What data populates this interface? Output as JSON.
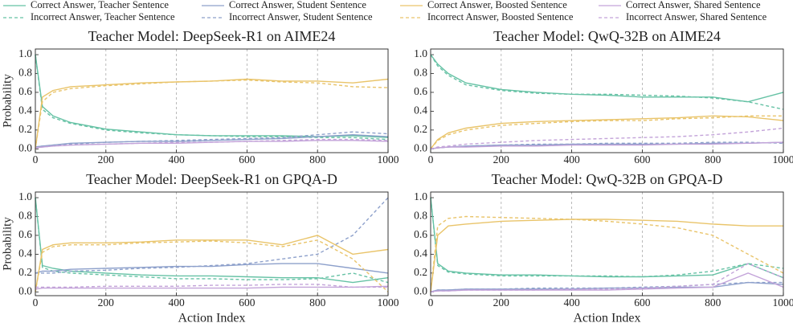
{
  "chart_data": [
    {
      "type": "line",
      "title": "Teacher Model: DeepSeek-R1 on AIME24",
      "ylabel": "Probability",
      "x": [
        0,
        20,
        50,
        100,
        200,
        300,
        400,
        500,
        600,
        700,
        800,
        900,
        1000
      ],
      "xlim": [
        0,
        1000
      ],
      "xticks": [
        0,
        200,
        400,
        600,
        800,
        1000
      ],
      "ylim": [
        -0.04,
        1.06
      ],
      "yticks": [
        {
          "value": 0,
          "label": "0.0"
        },
        0.2,
        0.4,
        0.6,
        0.8,
        {
          "value": 1,
          "label": "1.0"
        }
      ],
      "grid": true,
      "series": [
        {
          "name": "Correct Answer, Teacher Sentence",
          "color": "#66c2a5",
          "dash": false,
          "values": [
            1.0,
            0.45,
            0.35,
            0.28,
            0.21,
            0.18,
            0.15,
            0.14,
            0.14,
            0.14,
            0.13,
            0.14,
            0.12
          ]
        },
        {
          "name": "Incorrect Answer, Teacher Sentence",
          "color": "#66c2a5",
          "dash": true,
          "values": [
            1.0,
            0.42,
            0.33,
            0.27,
            0.2,
            0.17,
            0.15,
            0.14,
            0.13,
            0.13,
            0.12,
            0.12,
            0.1
          ]
        },
        {
          "name": "Correct Answer, Student Sentence",
          "color": "#8da0cb",
          "dash": false,
          "values": [
            0.02,
            0.03,
            0.04,
            0.06,
            0.07,
            0.08,
            0.08,
            0.09,
            0.1,
            0.11,
            0.13,
            0.15,
            0.13
          ]
        },
        {
          "name": "Incorrect Answer, Student Sentence",
          "color": "#8da0cb",
          "dash": true,
          "values": [
            0.02,
            0.03,
            0.04,
            0.05,
            0.07,
            0.08,
            0.09,
            0.1,
            0.11,
            0.12,
            0.15,
            0.18,
            0.16
          ]
        },
        {
          "name": "Correct Answer, Boosted Sentence",
          "color": "#e9c46a",
          "dash": false,
          "values": [
            0.0,
            0.55,
            0.62,
            0.66,
            0.68,
            0.7,
            0.71,
            0.72,
            0.74,
            0.72,
            0.72,
            0.7,
            0.74
          ]
        },
        {
          "name": "Incorrect Answer, Boosted Sentence",
          "color": "#e9c46a",
          "dash": true,
          "values": [
            0.0,
            0.5,
            0.6,
            0.64,
            0.67,
            0.69,
            0.71,
            0.72,
            0.73,
            0.71,
            0.7,
            0.66,
            0.65
          ]
        },
        {
          "name": "Correct Answer, Shared Sentence",
          "color": "#c3a3d9",
          "dash": false,
          "values": [
            0.01,
            0.02,
            0.03,
            0.04,
            0.05,
            0.06,
            0.06,
            0.07,
            0.08,
            0.08,
            0.09,
            0.09,
            0.08
          ]
        },
        {
          "name": "Incorrect Answer, Shared Sentence",
          "color": "#c3a3d9",
          "dash": true,
          "values": [
            0.01,
            0.02,
            0.03,
            0.04,
            0.05,
            0.06,
            0.07,
            0.07,
            0.08,
            0.09,
            0.1,
            0.1,
            0.09
          ]
        }
      ]
    },
    {
      "type": "line",
      "title": "Teacher Model: QwQ-32B on AIME24",
      "x": [
        0,
        20,
        50,
        100,
        200,
        300,
        400,
        500,
        600,
        700,
        800,
        900,
        1000
      ],
      "xlim": [
        0,
        1000
      ],
      "xticks": [
        0,
        200,
        400,
        600,
        800,
        1000
      ],
      "ylim": [
        -0.04,
        1.06
      ],
      "yticks": [
        {
          "value": 0,
          "label": "0.0"
        },
        0.2,
        0.4,
        0.6,
        0.8,
        {
          "value": 1,
          "label": "1.0"
        }
      ],
      "grid": true,
      "series": [
        {
          "name": "Correct Answer, Teacher Sentence",
          "color": "#66c2a5",
          "dash": false,
          "values": [
            1.0,
            0.9,
            0.8,
            0.7,
            0.63,
            0.6,
            0.58,
            0.57,
            0.55,
            0.55,
            0.55,
            0.5,
            0.6
          ]
        },
        {
          "name": "Incorrect Answer, Teacher Sentence",
          "color": "#66c2a5",
          "dash": true,
          "values": [
            1.0,
            0.88,
            0.78,
            0.68,
            0.62,
            0.59,
            0.58,
            0.58,
            0.57,
            0.56,
            0.54,
            0.5,
            0.42
          ]
        },
        {
          "name": "Correct Answer, Student Sentence",
          "color": "#8da0cb",
          "dash": false,
          "values": [
            0.0,
            0.01,
            0.02,
            0.03,
            0.04,
            0.04,
            0.05,
            0.05,
            0.05,
            0.05,
            0.06,
            0.06,
            0.07
          ]
        },
        {
          "name": "Incorrect Answer, Student Sentence",
          "color": "#8da0cb",
          "dash": true,
          "values": [
            0.0,
            0.01,
            0.02,
            0.03,
            0.04,
            0.05,
            0.05,
            0.06,
            0.06,
            0.06,
            0.07,
            0.07,
            0.06
          ]
        },
        {
          "name": "Correct Answer, Boosted Sentence",
          "color": "#e9c46a",
          "dash": false,
          "values": [
            0.0,
            0.1,
            0.17,
            0.22,
            0.27,
            0.29,
            0.3,
            0.31,
            0.32,
            0.33,
            0.35,
            0.34,
            0.3
          ]
        },
        {
          "name": "Incorrect Answer, Boosted Sentence",
          "color": "#e9c46a",
          "dash": true,
          "values": [
            0.0,
            0.09,
            0.15,
            0.2,
            0.25,
            0.27,
            0.29,
            0.3,
            0.3,
            0.32,
            0.33,
            0.35,
            0.35
          ]
        },
        {
          "name": "Correct Answer, Shared Sentence",
          "color": "#c3a3d9",
          "dash": false,
          "values": [
            0.0,
            0.01,
            0.02,
            0.02,
            0.03,
            0.03,
            0.04,
            0.04,
            0.04,
            0.05,
            0.05,
            0.06,
            0.07
          ]
        },
        {
          "name": "Incorrect Answer, Shared Sentence",
          "color": "#c3a3d9",
          "dash": true,
          "values": [
            0.0,
            0.02,
            0.03,
            0.05,
            0.07,
            0.09,
            0.1,
            0.11,
            0.12,
            0.13,
            0.15,
            0.18,
            0.22
          ]
        }
      ]
    },
    {
      "type": "line",
      "title": "Teacher Model: DeepSeek-R1 on GPQA-D",
      "ylabel": "Probability",
      "xlabel": "Action Index",
      "x": [
        0,
        20,
        50,
        100,
        200,
        300,
        400,
        500,
        600,
        700,
        800,
        900,
        1000
      ],
      "xlim": [
        0,
        1000
      ],
      "xticks": [
        0,
        200,
        400,
        600,
        800,
        1000
      ],
      "ylim": [
        -0.04,
        1.06
      ],
      "yticks": [
        {
          "value": 0,
          "label": "0.0"
        },
        0.2,
        0.4,
        0.6,
        0.8,
        {
          "value": 1,
          "label": "1.0"
        }
      ],
      "grid": true,
      "series": [
        {
          "name": "Correct Answer, Teacher Sentence",
          "color": "#66c2a5",
          "dash": false,
          "values": [
            1.0,
            0.28,
            0.25,
            0.22,
            0.2,
            0.18,
            0.17,
            0.17,
            0.16,
            0.15,
            0.15,
            0.1,
            0.15
          ]
        },
        {
          "name": "Incorrect Answer, Teacher Sentence",
          "color": "#66c2a5",
          "dash": true,
          "values": [
            1.0,
            0.26,
            0.22,
            0.2,
            0.18,
            0.16,
            0.14,
            0.14,
            0.13,
            0.13,
            0.14,
            0.2,
            0.1
          ]
        },
        {
          "name": "Correct Answer, Student Sentence",
          "color": "#8da0cb",
          "dash": false,
          "values": [
            0.2,
            0.22,
            0.22,
            0.24,
            0.25,
            0.26,
            0.27,
            0.27,
            0.29,
            0.3,
            0.3,
            0.25,
            0.2
          ]
        },
        {
          "name": "Incorrect Answer, Student Sentence",
          "color": "#8da0cb",
          "dash": true,
          "values": [
            0.2,
            0.2,
            0.2,
            0.22,
            0.23,
            0.25,
            0.26,
            0.28,
            0.3,
            0.35,
            0.4,
            0.6,
            1.0
          ]
        },
        {
          "name": "Correct Answer, Boosted Sentence",
          "color": "#e9c46a",
          "dash": false,
          "values": [
            0.0,
            0.45,
            0.5,
            0.52,
            0.52,
            0.53,
            0.55,
            0.55,
            0.55,
            0.5,
            0.6,
            0.4,
            0.45
          ]
        },
        {
          "name": "Incorrect Answer, Boosted Sentence",
          "color": "#e9c46a",
          "dash": true,
          "values": [
            0.0,
            0.42,
            0.48,
            0.5,
            0.5,
            0.52,
            0.53,
            0.54,
            0.52,
            0.48,
            0.55,
            0.35,
            0.0
          ]
        },
        {
          "name": "Correct Answer, Shared Sentence",
          "color": "#c3a3d9",
          "dash": false,
          "values": [
            0.03,
            0.04,
            0.04,
            0.04,
            0.04,
            0.04,
            0.04,
            0.04,
            0.04,
            0.05,
            0.05,
            0.05,
            0.06
          ]
        },
        {
          "name": "Incorrect Answer, Shared Sentence",
          "color": "#c3a3d9",
          "dash": true,
          "values": [
            0.05,
            0.05,
            0.05,
            0.05,
            0.06,
            0.06,
            0.06,
            0.07,
            0.07,
            0.08,
            0.08,
            0.05,
            0.05
          ]
        }
      ]
    },
    {
      "type": "line",
      "title": "Teacher Model: QwQ-32B on GPQA-D",
      "xlabel": "Action Index",
      "x": [
        0,
        20,
        50,
        100,
        200,
        300,
        400,
        500,
        600,
        700,
        800,
        900,
        1000
      ],
      "xlim": [
        0,
        1000
      ],
      "xticks": [
        0,
        200,
        400,
        600,
        800,
        1000
      ],
      "ylim": [
        -0.04,
        1.06
      ],
      "yticks": [
        {
          "value": 0,
          "label": "0.0"
        },
        0.2,
        0.4,
        0.6,
        0.8,
        {
          "value": 1,
          "label": "1.0"
        }
      ],
      "grid": true,
      "series": [
        {
          "name": "Correct Answer, Teacher Sentence",
          "color": "#66c2a5",
          "dash": false,
          "values": [
            1.0,
            0.3,
            0.22,
            0.2,
            0.18,
            0.18,
            0.17,
            0.16,
            0.16,
            0.17,
            0.18,
            0.3,
            0.15
          ]
        },
        {
          "name": "Incorrect Answer, Teacher Sentence",
          "color": "#66c2a5",
          "dash": true,
          "values": [
            1.0,
            0.28,
            0.21,
            0.19,
            0.17,
            0.17,
            0.17,
            0.17,
            0.16,
            0.18,
            0.22,
            0.3,
            0.25
          ]
        },
        {
          "name": "Correct Answer, Student Sentence",
          "color": "#8da0cb",
          "dash": false,
          "values": [
            0.0,
            0.02,
            0.02,
            0.03,
            0.03,
            0.03,
            0.03,
            0.04,
            0.04,
            0.05,
            0.05,
            0.1,
            0.08
          ]
        },
        {
          "name": "Incorrect Answer, Student Sentence",
          "color": "#8da0cb",
          "dash": true,
          "values": [
            0.0,
            0.02,
            0.02,
            0.03,
            0.03,
            0.04,
            0.04,
            0.04,
            0.05,
            0.06,
            0.08,
            0.1,
            0.1
          ]
        },
        {
          "name": "Correct Answer, Boosted Sentence",
          "color": "#e9c46a",
          "dash": false,
          "values": [
            0.0,
            0.6,
            0.7,
            0.72,
            0.75,
            0.76,
            0.77,
            0.77,
            0.76,
            0.75,
            0.72,
            0.7,
            0.7
          ]
        },
        {
          "name": "Incorrect Answer, Boosted Sentence",
          "color": "#e9c46a",
          "dash": true,
          "values": [
            0.0,
            0.7,
            0.78,
            0.8,
            0.79,
            0.78,
            0.77,
            0.75,
            0.72,
            0.68,
            0.6,
            0.4,
            0.2
          ]
        },
        {
          "name": "Correct Answer, Shared Sentence",
          "color": "#c3a3d9",
          "dash": false,
          "values": [
            0.0,
            0.01,
            0.01,
            0.02,
            0.02,
            0.02,
            0.02,
            0.02,
            0.03,
            0.04,
            0.05,
            0.2,
            0.05
          ]
        },
        {
          "name": "Incorrect Answer, Shared Sentence",
          "color": "#c3a3d9",
          "dash": true,
          "values": [
            0.0,
            0.01,
            0.01,
            0.02,
            0.02,
            0.02,
            0.03,
            0.03,
            0.04,
            0.06,
            0.08,
            0.3,
            0.15
          ]
        }
      ]
    }
  ]
}
